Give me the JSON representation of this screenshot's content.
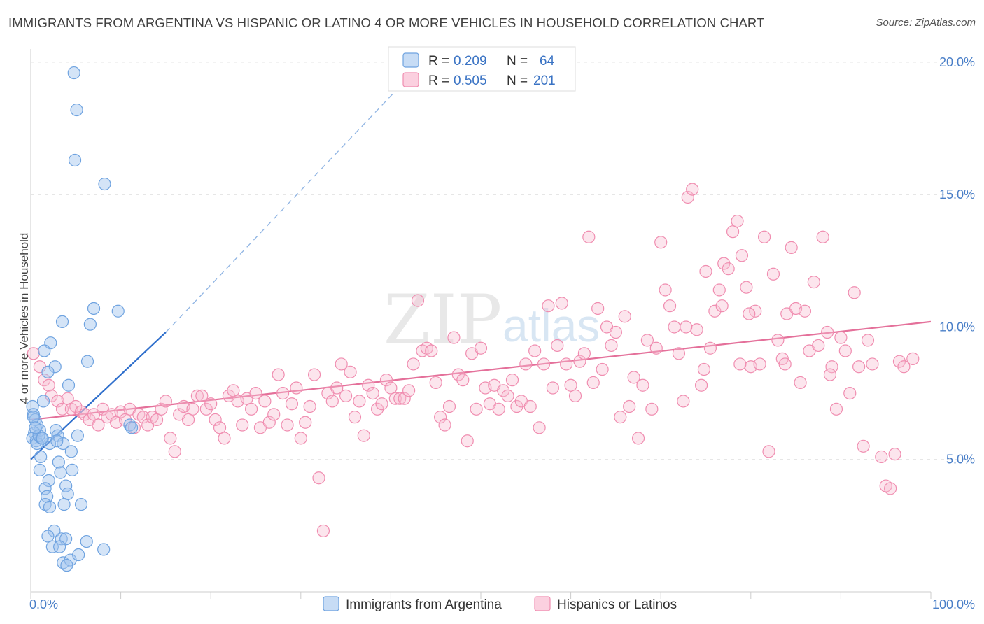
{
  "header": {
    "title": "IMMIGRANTS FROM ARGENTINA VS HISPANIC OR LATINO 4 OR MORE VEHICLES IN HOUSEHOLD CORRELATION CHART",
    "source": "Source: ZipAtlas.com"
  },
  "watermark": {
    "zip": "ZIP",
    "atlas": "atlas"
  },
  "legend": {
    "rows": [
      {
        "r_label": "R = ",
        "r_value": "0.209",
        "n_label": "N = ",
        "n_value": "64",
        "color": "#6fa3e0"
      },
      {
        "r_label": "R = ",
        "r_value": "0.505",
        "n_label": "N = ",
        "n_value": "201",
        "color": "#f08db0"
      }
    ]
  },
  "bottom_legend": [
    {
      "label": "Immigrants from Argentina",
      "color": "#6fa3e0"
    },
    {
      "label": "Hispanics or Latinos",
      "color": "#f08db0"
    }
  ],
  "chart_data": {
    "type": "scatter",
    "title": "IMMIGRANTS FROM ARGENTINA VS HISPANIC OR LATINO 4 OR MORE VEHICLES IN HOUSEHOLD CORRELATION CHART",
    "xlabel": "",
    "ylabel": "4 or more Vehicles in Household",
    "xlim": [
      0,
      100
    ],
    "ylim": [
      0,
      20.5
    ],
    "x_tick_labels": [
      "0.0%",
      "100.0%"
    ],
    "y_ticks": [
      5,
      10,
      15,
      20
    ],
    "y_tick_labels": [
      "5.0%",
      "10.0%",
      "15.0%",
      "20.0%"
    ],
    "grid": true,
    "legend_position": "top-center",
    "series": [
      {
        "name": "Immigrants from Argentina",
        "color": "#6fa3e0",
        "trend": {
          "x": [
            0,
            15
          ],
          "y": [
            5.0,
            9.8
          ],
          "dashed_extension_to": [
            43,
            19.8
          ]
        },
        "points": [
          [
            4.8,
            19.6
          ],
          [
            5.1,
            18.2
          ],
          [
            4.9,
            16.3
          ],
          [
            8.2,
            15.4
          ],
          [
            7.0,
            10.7
          ],
          [
            9.7,
            10.6
          ],
          [
            3.5,
            10.2
          ],
          [
            6.6,
            10.1
          ],
          [
            2.2,
            9.4
          ],
          [
            1.5,
            9.1
          ],
          [
            6.3,
            8.7
          ],
          [
            2.7,
            8.5
          ],
          [
            1.9,
            8.3
          ],
          [
            4.2,
            7.8
          ],
          [
            1.4,
            7.2
          ],
          [
            0.2,
            7.0
          ],
          [
            0.3,
            6.7
          ],
          [
            0.5,
            6.5
          ],
          [
            0.7,
            6.3
          ],
          [
            1.0,
            6.1
          ],
          [
            0.4,
            6.0
          ],
          [
            0.2,
            5.8
          ],
          [
            0.6,
            5.7
          ],
          [
            2.8,
            6.1
          ],
          [
            3.0,
            5.9
          ],
          [
            5.2,
            5.9
          ],
          [
            11.0,
            6.3
          ],
          [
            2.1,
            5.6
          ],
          [
            3.6,
            5.6
          ],
          [
            0.7,
            5.6
          ],
          [
            1.2,
            5.8
          ],
          [
            4.5,
            5.3
          ],
          [
            1.1,
            5.1
          ],
          [
            3.1,
            4.9
          ],
          [
            1.0,
            4.6
          ],
          [
            3.3,
            4.5
          ],
          [
            4.6,
            4.6
          ],
          [
            2.0,
            4.2
          ],
          [
            1.6,
            3.9
          ],
          [
            3.9,
            4.0
          ],
          [
            1.8,
            3.6
          ],
          [
            4.1,
            3.7
          ],
          [
            1.6,
            3.3
          ],
          [
            3.7,
            3.3
          ],
          [
            5.6,
            3.3
          ],
          [
            2.1,
            3.2
          ],
          [
            2.6,
            2.3
          ],
          [
            1.9,
            2.1
          ],
          [
            3.4,
            2.0
          ],
          [
            3.9,
            2.0
          ],
          [
            6.2,
            1.9
          ],
          [
            2.4,
            1.7
          ],
          [
            3.2,
            1.7
          ],
          [
            8.1,
            1.6
          ],
          [
            3.6,
            1.1
          ],
          [
            4.4,
            1.2
          ],
          [
            5.3,
            1.4
          ],
          [
            4.0,
            1.0
          ],
          [
            0.3,
            6.6
          ],
          [
            0.9,
            5.9
          ],
          [
            2.9,
            5.7
          ],
          [
            0.5,
            6.2
          ],
          [
            1.3,
            5.8
          ],
          [
            11.2,
            6.2
          ]
        ]
      },
      {
        "name": "Hispanics or Latinos",
        "color": "#f08db0",
        "trend": {
          "x": [
            0,
            100
          ],
          "y": [
            6.5,
            10.2
          ]
        },
        "points": [
          [
            0.3,
            9.0
          ],
          [
            1.0,
            8.5
          ],
          [
            1.5,
            8.0
          ],
          [
            2.0,
            7.8
          ],
          [
            2.3,
            7.4
          ],
          [
            3.0,
            7.2
          ],
          [
            3.5,
            6.9
          ],
          [
            4.1,
            7.3
          ],
          [
            4.5,
            6.9
          ],
          [
            5.0,
            7.0
          ],
          [
            5.6,
            6.8
          ],
          [
            6.0,
            6.7
          ],
          [
            6.5,
            6.5
          ],
          [
            7.0,
            6.7
          ],
          [
            7.5,
            6.3
          ],
          [
            8.0,
            6.9
          ],
          [
            8.5,
            6.6
          ],
          [
            9.0,
            6.7
          ],
          [
            9.5,
            6.4
          ],
          [
            10.0,
            6.8
          ],
          [
            10.5,
            6.5
          ],
          [
            11.0,
            6.9
          ],
          [
            11.5,
            6.2
          ],
          [
            12.0,
            6.7
          ],
          [
            12.5,
            6.6
          ],
          [
            13.0,
            6.3
          ],
          [
            13.5,
            6.6
          ],
          [
            14.0,
            6.5
          ],
          [
            14.5,
            6.9
          ],
          [
            15.0,
            7.2
          ],
          [
            15.5,
            5.8
          ],
          [
            16.0,
            5.3
          ],
          [
            16.5,
            6.7
          ],
          [
            17.0,
            7.0
          ],
          [
            17.5,
            6.5
          ],
          [
            18.0,
            6.9
          ],
          [
            18.5,
            7.4
          ],
          [
            19.0,
            7.4
          ],
          [
            19.5,
            6.9
          ],
          [
            20.0,
            7.1
          ],
          [
            20.5,
            6.5
          ],
          [
            21.0,
            6.2
          ],
          [
            21.5,
            5.8
          ],
          [
            22.0,
            7.4
          ],
          [
            22.5,
            7.6
          ],
          [
            23.0,
            7.2
          ],
          [
            23.5,
            6.3
          ],
          [
            24.0,
            7.3
          ],
          [
            24.5,
            6.9
          ],
          [
            25.0,
            7.5
          ],
          [
            25.5,
            6.2
          ],
          [
            26.0,
            7.2
          ],
          [
            26.5,
            6.4
          ],
          [
            27.0,
            6.7
          ],
          [
            27.5,
            8.2
          ],
          [
            28.0,
            7.5
          ],
          [
            28.5,
            6.3
          ],
          [
            29.0,
            7.1
          ],
          [
            29.5,
            7.7
          ],
          [
            30.0,
            5.8
          ],
          [
            30.5,
            6.4
          ],
          [
            31.0,
            7.0
          ],
          [
            31.5,
            8.2
          ],
          [
            32.0,
            4.3
          ],
          [
            32.5,
            2.3
          ],
          [
            33.0,
            7.5
          ],
          [
            33.5,
            7.2
          ],
          [
            34.0,
            7.7
          ],
          [
            34.5,
            8.6
          ],
          [
            35.0,
            7.4
          ],
          [
            35.5,
            8.3
          ],
          [
            36.0,
            6.6
          ],
          [
            36.5,
            7.2
          ],
          [
            37.0,
            5.9
          ],
          [
            37.5,
            7.8
          ],
          [
            38.0,
            7.5
          ],
          [
            38.5,
            6.9
          ],
          [
            39.0,
            7.1
          ],
          [
            39.5,
            8.0
          ],
          [
            40.0,
            7.7
          ],
          [
            40.5,
            7.3
          ],
          [
            41.0,
            7.3
          ],
          [
            41.5,
            7.3
          ],
          [
            42.0,
            7.6
          ],
          [
            42.5,
            8.6
          ],
          [
            43.0,
            11.0
          ],
          [
            43.5,
            9.1
          ],
          [
            44.0,
            9.2
          ],
          [
            44.5,
            9.1
          ],
          [
            45.0,
            7.9
          ],
          [
            45.5,
            6.6
          ],
          [
            46.0,
            6.3
          ],
          [
            46.5,
            7.0
          ],
          [
            47.0,
            9.6
          ],
          [
            47.5,
            8.2
          ],
          [
            48.0,
            8.0
          ],
          [
            48.5,
            5.7
          ],
          [
            49.0,
            9.0
          ],
          [
            49.5,
            6.9
          ],
          [
            50.0,
            9.2
          ],
          [
            50.5,
            7.7
          ],
          [
            51.0,
            7.1
          ],
          [
            51.5,
            7.8
          ],
          [
            52.0,
            6.9
          ],
          [
            52.5,
            7.6
          ],
          [
            53.0,
            7.4
          ],
          [
            53.5,
            8.0
          ],
          [
            54.0,
            7.0
          ],
          [
            54.5,
            7.2
          ],
          [
            55.0,
            8.6
          ],
          [
            55.5,
            7.0
          ],
          [
            56.0,
            9.1
          ],
          [
            56.5,
            6.2
          ],
          [
            57.0,
            8.6
          ],
          [
            57.5,
            10.8
          ],
          [
            58.0,
            7.7
          ],
          [
            58.5,
            9.3
          ],
          [
            59.0,
            10.9
          ],
          [
            59.5,
            8.6
          ],
          [
            60.0,
            7.8
          ],
          [
            60.5,
            7.4
          ],
          [
            61.0,
            8.7
          ],
          [
            61.5,
            9.0
          ],
          [
            62.0,
            13.4
          ],
          [
            62.5,
            7.9
          ],
          [
            63.0,
            10.7
          ],
          [
            63.5,
            8.4
          ],
          [
            64.0,
            10.0
          ],
          [
            64.5,
            9.3
          ],
          [
            65.0,
            9.8
          ],
          [
            65.5,
            6.6
          ],
          [
            66.0,
            10.4
          ],
          [
            66.5,
            7.0
          ],
          [
            67.0,
            8.1
          ],
          [
            67.5,
            5.8
          ],
          [
            68.0,
            7.8
          ],
          [
            68.5,
            9.5
          ],
          [
            69.0,
            6.9
          ],
          [
            69.5,
            9.2
          ],
          [
            70.0,
            13.2
          ],
          [
            70.5,
            11.4
          ],
          [
            71.0,
            10.8
          ],
          [
            71.5,
            10.0
          ],
          [
            72.0,
            9.0
          ],
          [
            72.5,
            7.2
          ],
          [
            73.0,
            14.9
          ],
          [
            73.5,
            15.2
          ],
          [
            74.0,
            9.9
          ],
          [
            74.5,
            7.8
          ],
          [
            75.0,
            12.1
          ],
          [
            75.5,
            9.2
          ],
          [
            76.0,
            10.6
          ],
          [
            76.5,
            11.4
          ],
          [
            77.0,
            12.4
          ],
          [
            77.5,
            12.2
          ],
          [
            78.0,
            13.6
          ],
          [
            78.5,
            14.0
          ],
          [
            79.0,
            12.7
          ],
          [
            79.5,
            11.5
          ],
          [
            80.0,
            8.5
          ],
          [
            80.5,
            10.6
          ],
          [
            81.0,
            8.6
          ],
          [
            81.5,
            13.4
          ],
          [
            82.0,
            5.3
          ],
          [
            82.5,
            12.0
          ],
          [
            83.0,
            9.5
          ],
          [
            83.5,
            8.8
          ],
          [
            84.0,
            10.5
          ],
          [
            84.5,
            13.0
          ],
          [
            85.0,
            10.7
          ],
          [
            85.5,
            7.9
          ],
          [
            86.0,
            10.6
          ],
          [
            86.5,
            9.1
          ],
          [
            87.0,
            11.7
          ],
          [
            87.5,
            9.3
          ],
          [
            88.0,
            13.4
          ],
          [
            88.5,
            9.8
          ],
          [
            89.0,
            8.5
          ],
          [
            89.5,
            6.9
          ],
          [
            90.0,
            9.6
          ],
          [
            90.5,
            9.1
          ],
          [
            91.0,
            7.5
          ],
          [
            91.5,
            11.3
          ],
          [
            92.0,
            8.5
          ],
          [
            92.5,
            5.5
          ],
          [
            93.0,
            9.5
          ],
          [
            94.5,
            5.1
          ],
          [
            95.0,
            4.0
          ],
          [
            95.5,
            3.9
          ],
          [
            96.0,
            5.2
          ],
          [
            96.5,
            8.7
          ],
          [
            97.0,
            8.5
          ],
          [
            98.0,
            8.8
          ],
          [
            93.5,
            8.6
          ],
          [
            88.8,
            8.2
          ],
          [
            83.8,
            8.6
          ],
          [
            79.8,
            10.5
          ],
          [
            78.8,
            8.6
          ],
          [
            76.8,
            10.8
          ],
          [
            74.8,
            8.4
          ],
          [
            72.8,
            10.0
          ]
        ]
      }
    ]
  }
}
